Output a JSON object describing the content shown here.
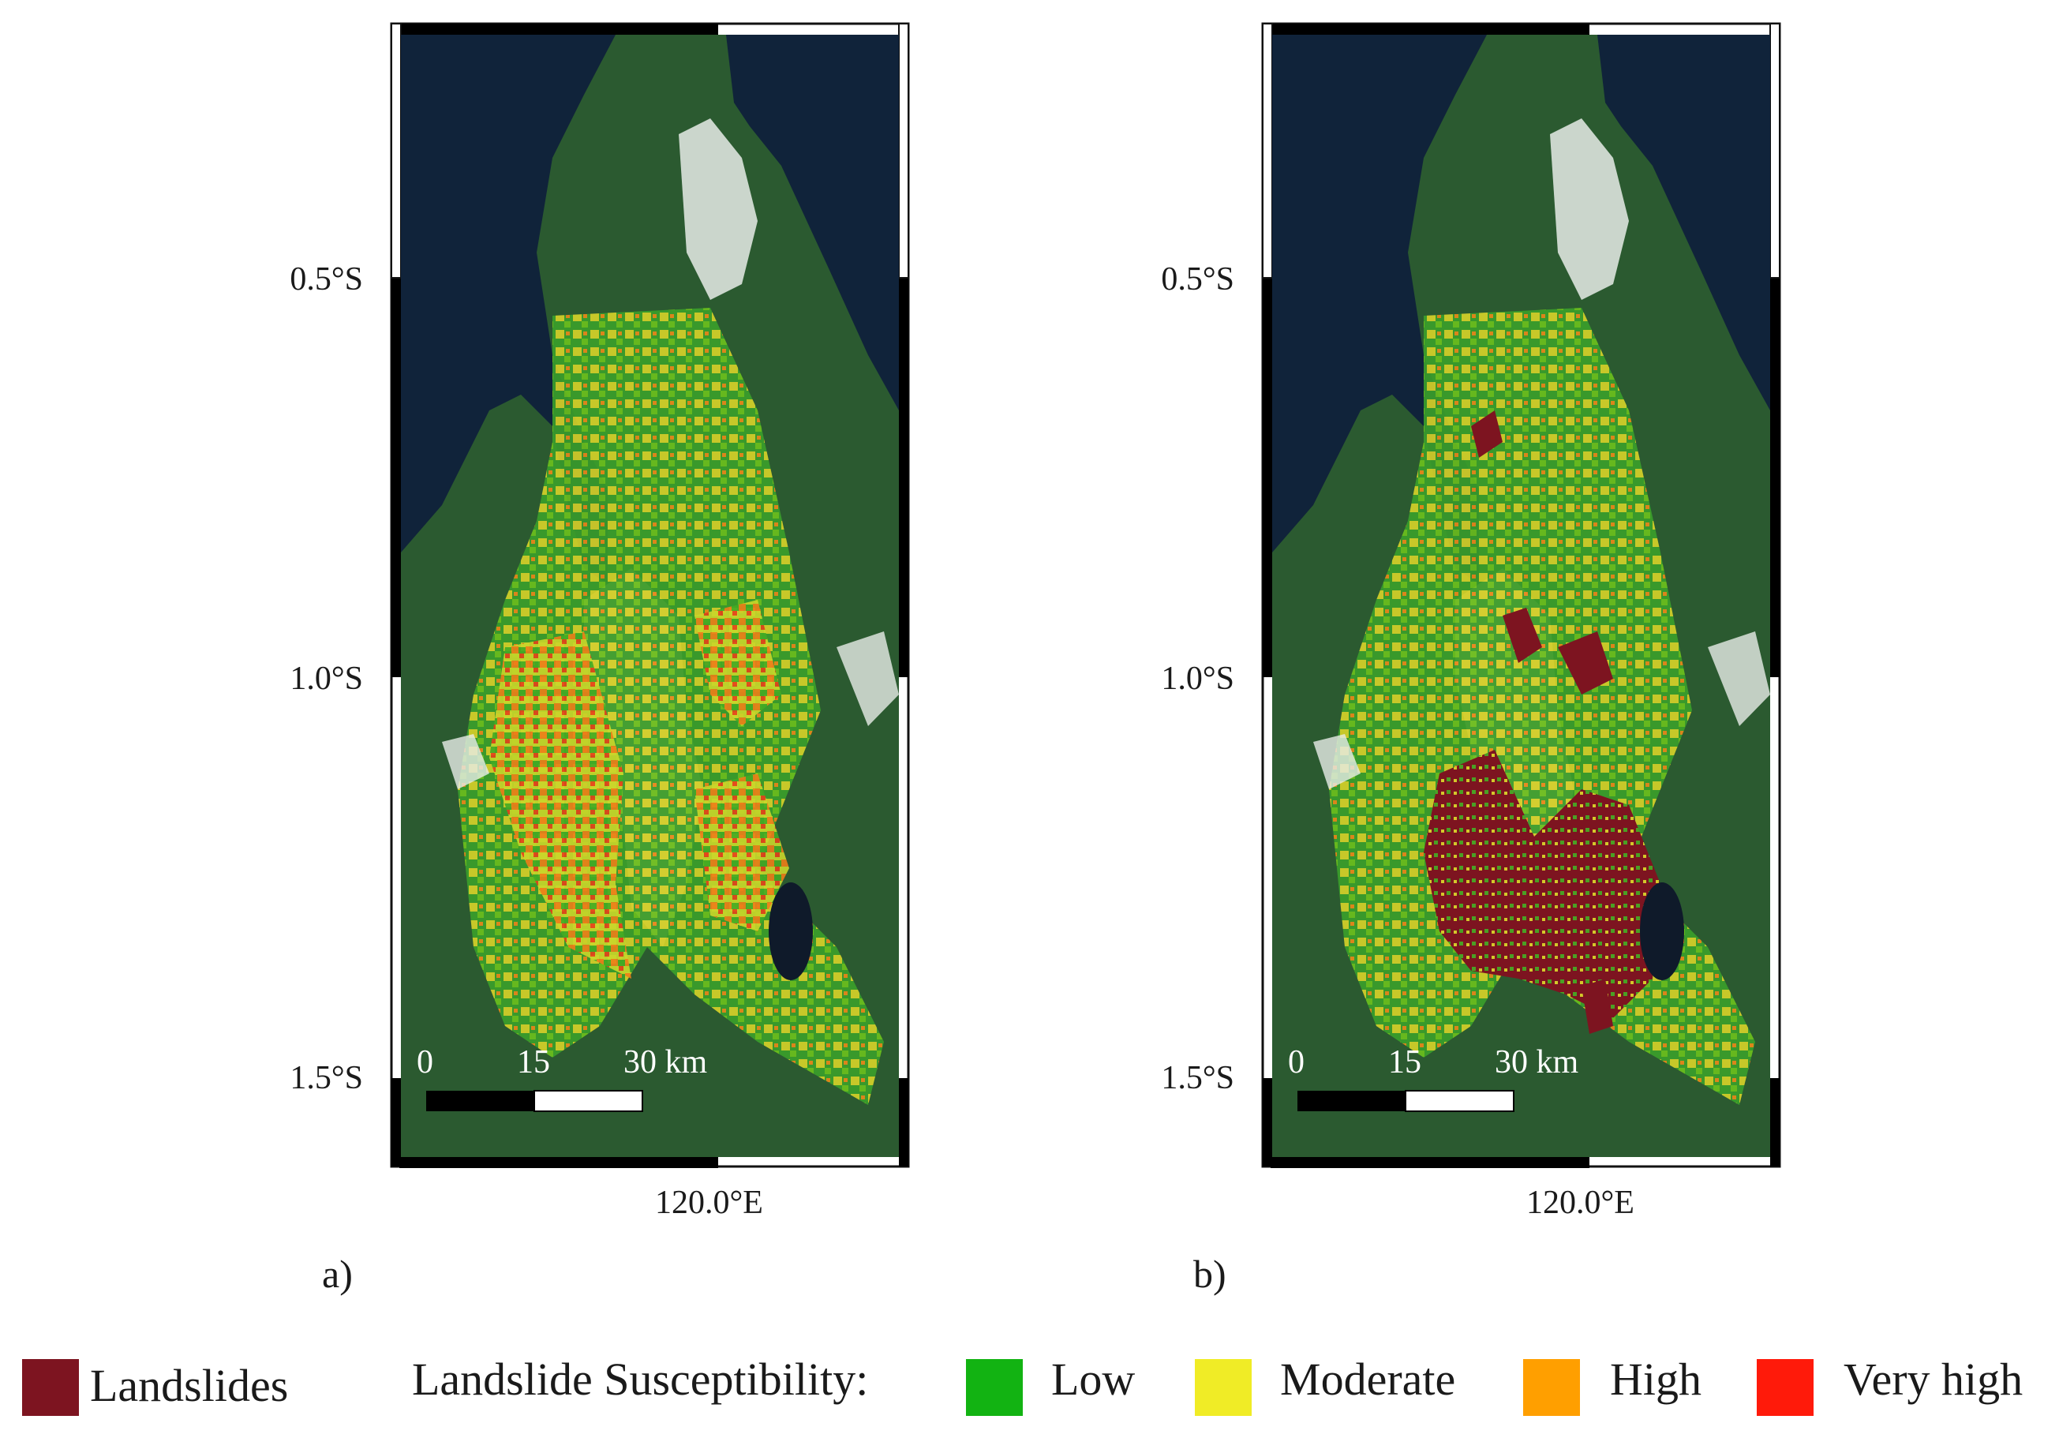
{
  "panels": [
    {
      "id": "a",
      "letter": "a)",
      "lat_ticks": [
        "0.5°S",
        "1.0°S",
        "1.5°S"
      ],
      "lon_tick": "120.0°E",
      "scale": {
        "t0": "0",
        "t1": "15",
        "t2": "30 km"
      }
    },
    {
      "id": "b",
      "letter": "b)",
      "lat_ticks": [
        "0.5°S",
        "1.0°S",
        "1.5°S"
      ],
      "lon_tick": "120.0°E",
      "scale": {
        "t0": "0",
        "t1": "15",
        "t2": "30 km"
      }
    }
  ],
  "legend": {
    "landslides_label": "Landslides",
    "susceptibility_title": "Landslide Susceptibility:",
    "classes": [
      {
        "label": "Low",
        "color": "#12b312"
      },
      {
        "label": "Moderate",
        "color": "#f0ec26"
      },
      {
        "label": "High",
        "color": "#ff9f00"
      },
      {
        "label": "Very high",
        "color": "#ff1a0a"
      }
    ],
    "landslides_color": "#7d1420"
  },
  "colors": {
    "sea": "#10233a",
    "land": "#2b5a30",
    "valley": "#b9a088",
    "cloud": "#e8ece8"
  }
}
